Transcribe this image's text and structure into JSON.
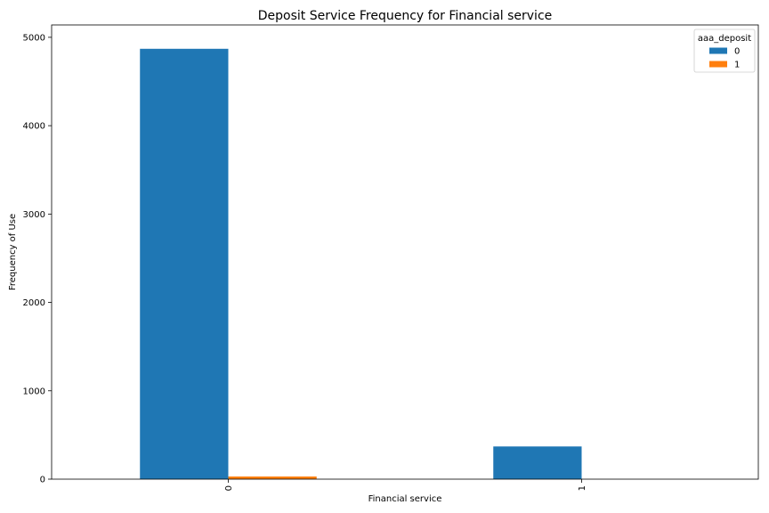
{
  "chart_data": {
    "type": "bar",
    "title": "Deposit Service Frequency for Financial service",
    "xlabel": "Financial service",
    "ylabel": "Frequency of Use",
    "categories": [
      "0",
      "1"
    ],
    "series": [
      {
        "name": "0",
        "values": [
          4870,
          370
        ],
        "color": "#1f77b4"
      },
      {
        "name": "1",
        "values": [
          30,
          0
        ],
        "color": "#ff7f0e"
      }
    ],
    "ylim": [
      0,
      5140
    ],
    "yticks": [
      0,
      1000,
      2000,
      3000,
      4000,
      5000
    ],
    "legend": {
      "title": "aaa_deposit",
      "placement": "top-right"
    },
    "grid": false
  }
}
